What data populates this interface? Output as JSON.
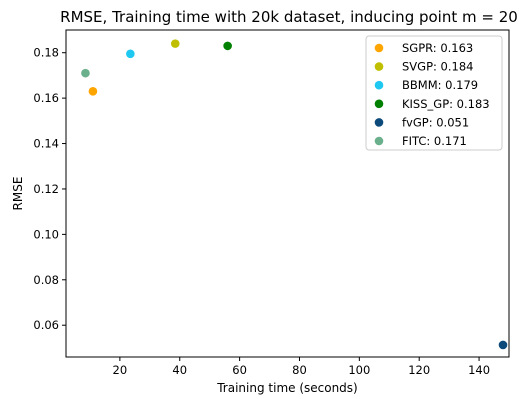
{
  "chart_data": {
    "type": "scatter",
    "title": "RMSE, Training time with 20k dataset, inducing point m = 20",
    "xlabel": "Training time (seconds)",
    "ylabel": "RMSE",
    "xlim": [
      2,
      150
    ],
    "ylim": [
      0.046,
      0.19
    ],
    "xticks": [
      "20",
      "40",
      "60",
      "80",
      "100",
      "120",
      "140"
    ],
    "yticks": [
      "0.06",
      "0.08",
      "0.10",
      "0.12",
      "0.14",
      "0.16",
      "0.18"
    ],
    "grid": false,
    "legend_position": "top-right",
    "series": [
      {
        "name": "SGPR: 0.163",
        "x": 11.0,
        "y": 0.163,
        "color": "#FFA500"
      },
      {
        "name": "SVGP: 0.184",
        "x": 38.5,
        "y": 0.184,
        "color": "#BFBF00"
      },
      {
        "name": "BBMM: 0.179",
        "x": 23.5,
        "y": 0.1795,
        "color": "#1EC8F0"
      },
      {
        "name": "KISS_GP: 0.183",
        "x": 56.0,
        "y": 0.183,
        "color": "#008000"
      },
      {
        "name": "fvGP: 0.051",
        "x": 148.0,
        "y": 0.0513,
        "color": "#0B4A7B"
      },
      {
        "name": "FITC: 0.171",
        "x": 8.5,
        "y": 0.171,
        "color": "#6AB08C"
      }
    ]
  }
}
